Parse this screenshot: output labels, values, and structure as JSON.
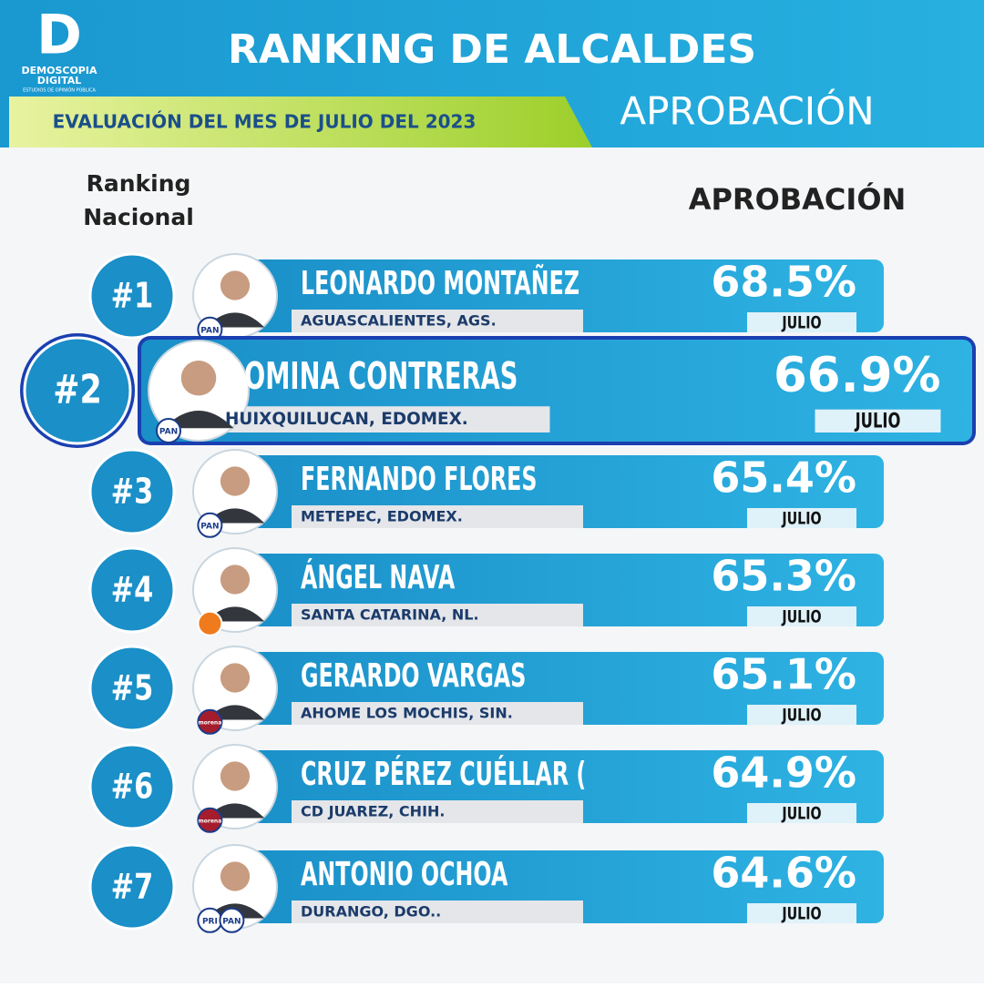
{
  "header": {
    "logo": {
      "letter": "D",
      "name": "DEMOSCOPIA",
      "sub": "DIGITAL",
      "tagline": "ESTUDIOS DE OPINIÓN PÚBLICA"
    },
    "title": "RANKING DE ALCALDES",
    "subtitle": "EVALUACIÓN DEL MES DE JULIO DEL 2023",
    "metric": "APROBACIÓN"
  },
  "columns": {
    "rank_line1": "Ranking",
    "rank_line2": "Nacional",
    "approval": "APROBACIÓN"
  },
  "rows": [
    {
      "rank": "#1",
      "name": "LEONARDO MONTAÑEZ",
      "location": "AGUASCALIENTES, AGS.",
      "approval": "68.5%",
      "month": "JULIO",
      "parties": [
        "PAN"
      ]
    },
    {
      "rank": "#2",
      "name": "ROMINA CONTRERAS",
      "location": "HUIXQUILUCAN, EDOMEX.",
      "approval": "66.9%",
      "month": "JULIO",
      "parties": [
        "PAN"
      ]
    },
    {
      "rank": "#3",
      "name": "FERNANDO FLORES",
      "location": "METEPEC, EDOMEX.",
      "approval": "65.4%",
      "month": "JULIO",
      "parties": [
        "PAN"
      ]
    },
    {
      "rank": "#4",
      "name": "ÁNGEL NAVA",
      "location": "SANTA CATARINA, NL.",
      "approval": "65.3%",
      "month": "JULIO",
      "parties": []
    },
    {
      "rank": "#5",
      "name": "GERARDO VARGAS",
      "location": "AHOME LOS MOCHIS, SIN.",
      "approval": "65.1%",
      "month": "JULIO",
      "parties": [
        "morena"
      ]
    },
    {
      "rank": "#6",
      "name": "CRUZ PÉREZ CUÉLLAR (",
      "location": "CD JUAREZ, CHIH.",
      "approval": "64.9%",
      "month": "JULIO",
      "parties": [
        "morena"
      ]
    },
    {
      "rank": "#7",
      "name": "ANTONIO OCHOA",
      "location": "DURANGO, DGO..",
      "approval": "64.6%",
      "month": "JULIO",
      "parties": [
        "PRI",
        "PAN"
      ]
    }
  ]
}
